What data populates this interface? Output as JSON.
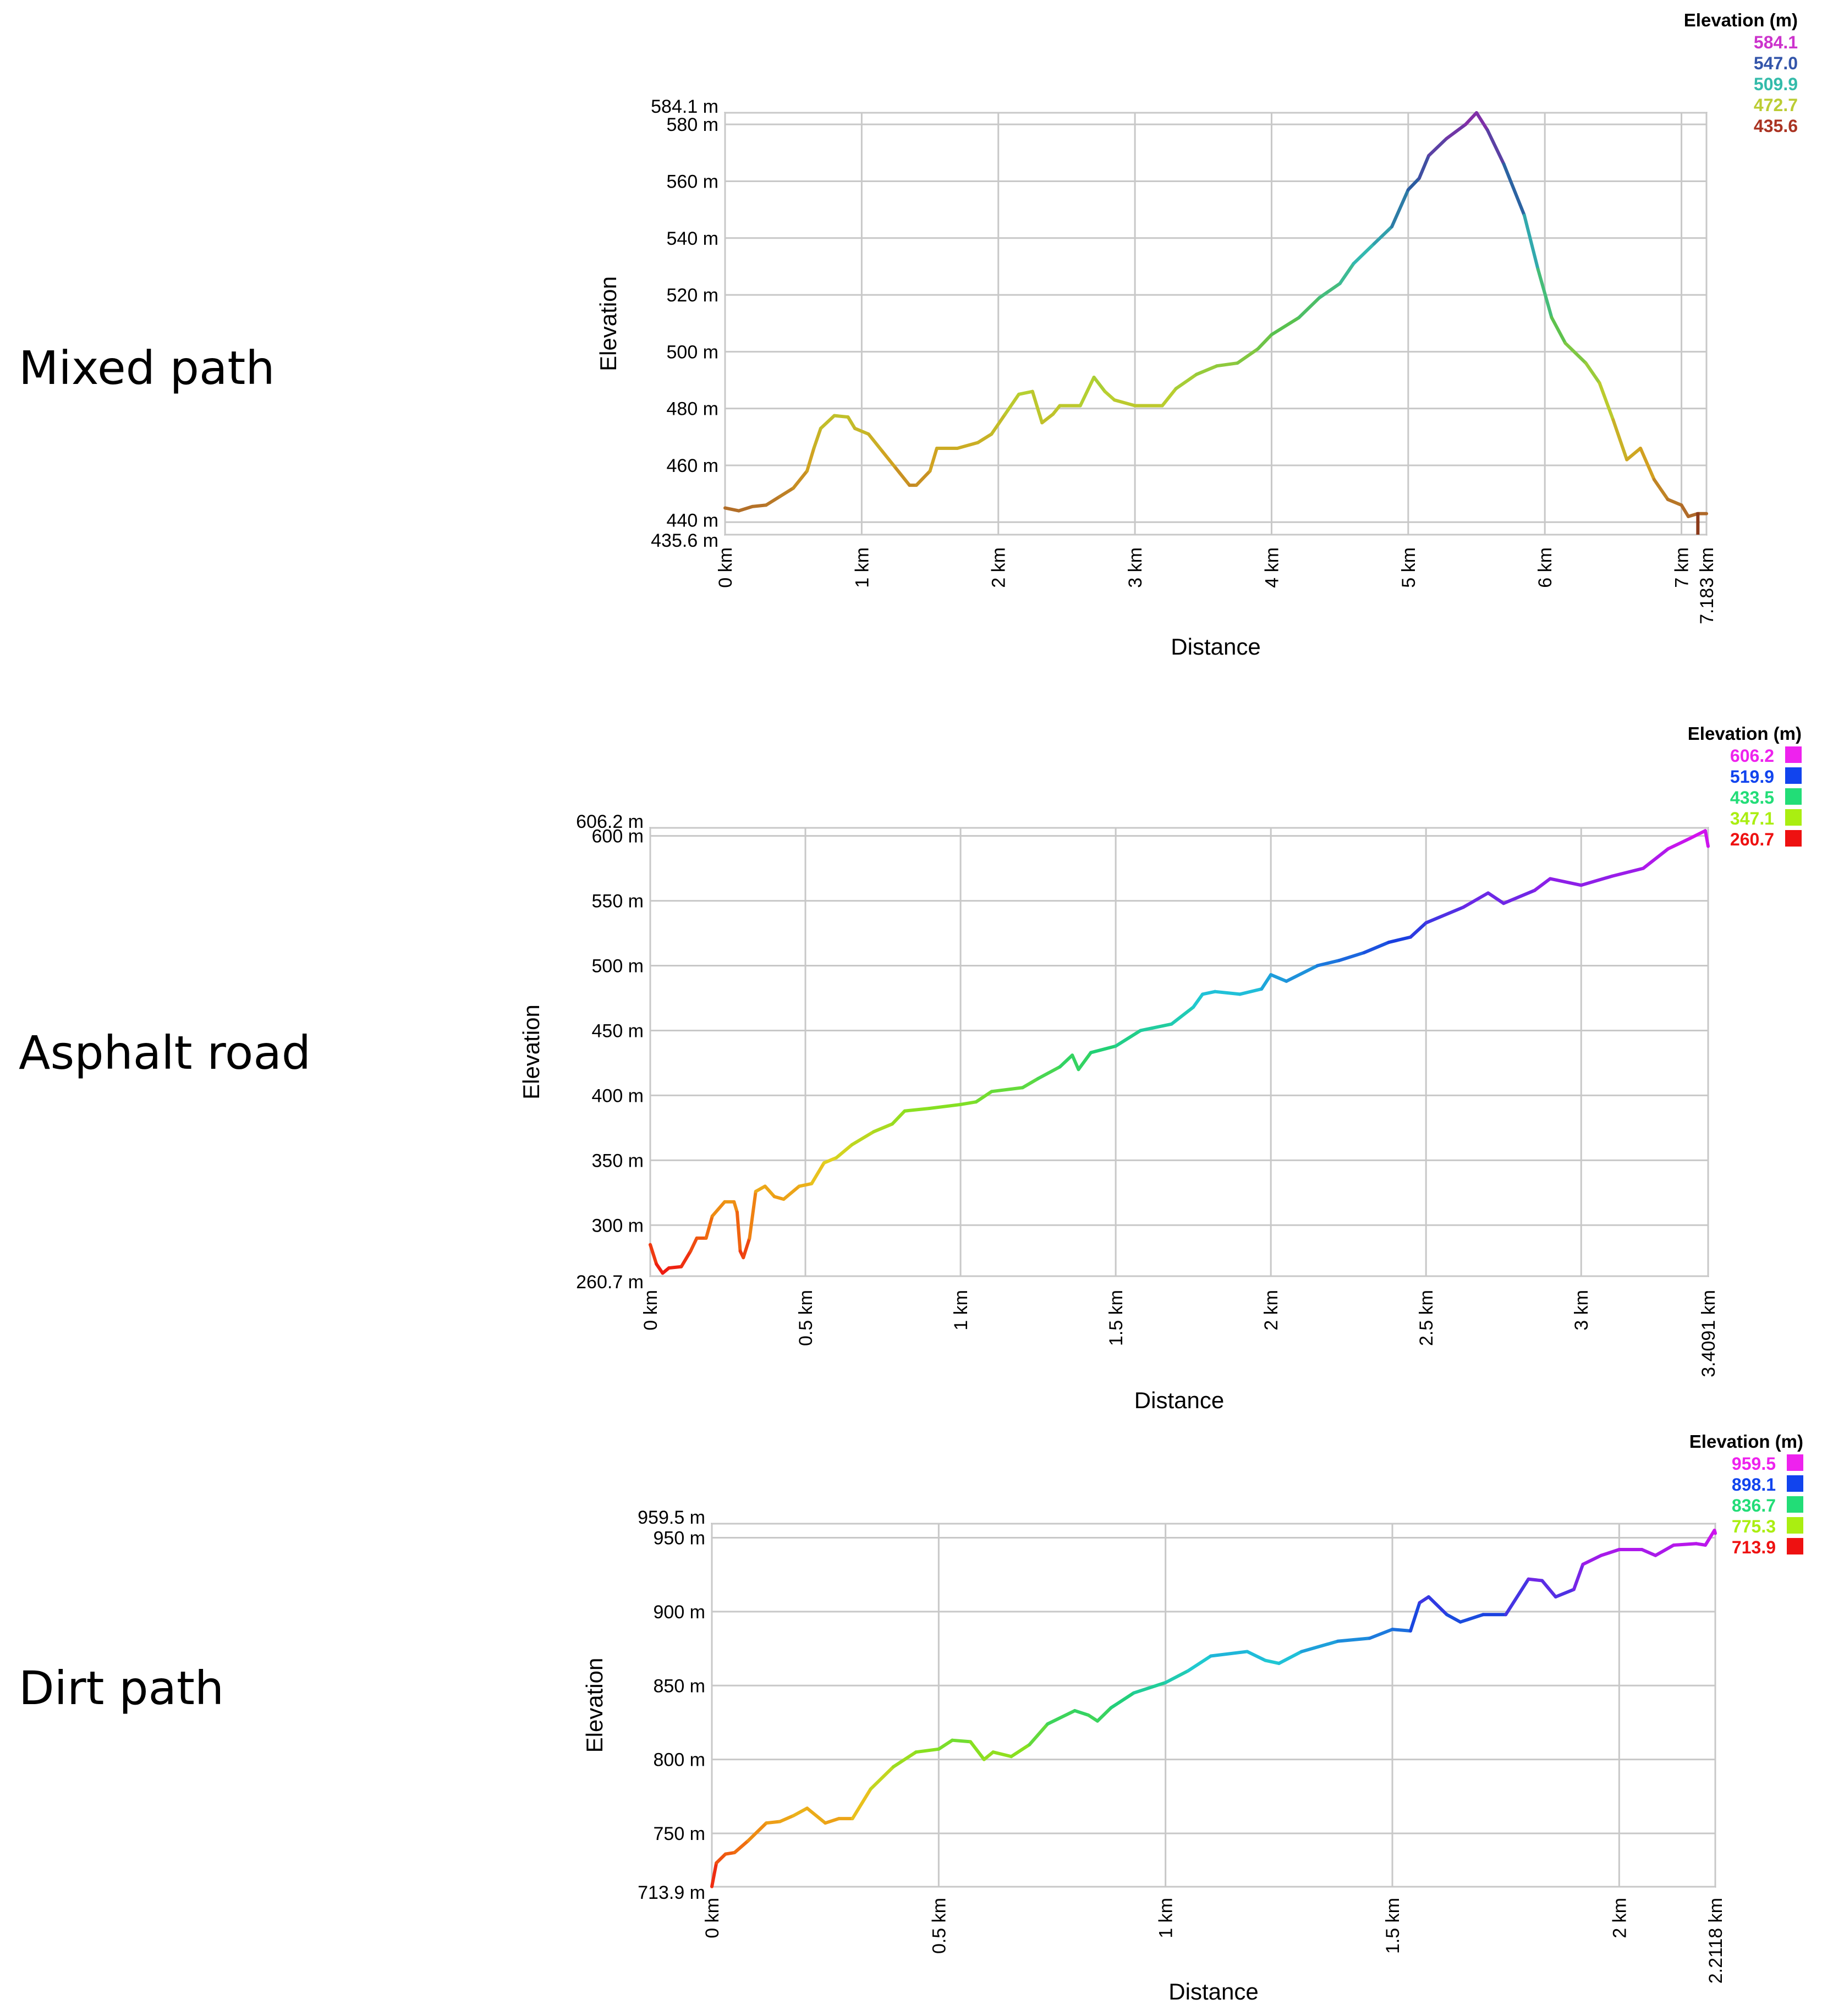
{
  "rows": [
    {
      "label": "Mixed path"
    },
    {
      "label": "Asphalt road"
    },
    {
      "label": "Dirt path"
    }
  ],
  "chart_data": [
    {
      "type": "line",
      "xlabel": "Distance",
      "ylabel": "Elevation",
      "xlim": [
        0,
        7.183
      ],
      "ylim": [
        435.6,
        584.1
      ],
      "x_ticks": [
        {
          "v": 0,
          "label": "0 km"
        },
        {
          "v": 1,
          "label": "1 km"
        },
        {
          "v": 2,
          "label": "2 km"
        },
        {
          "v": 3,
          "label": "3 km"
        },
        {
          "v": 4,
          "label": "4 km"
        },
        {
          "v": 5,
          "label": "5 km"
        },
        {
          "v": 6,
          "label": "6 km"
        },
        {
          "v": 7,
          "label": "7 km"
        },
        {
          "v": 7.183,
          "label": "7.183 km"
        }
      ],
      "y_ticks": [
        {
          "v": 435.6,
          "label": "435.6 m"
        },
        {
          "v": 440,
          "label": "440 m"
        },
        {
          "v": 460,
          "label": "460 m"
        },
        {
          "v": 480,
          "label": "480 m"
        },
        {
          "v": 500,
          "label": "500 m"
        },
        {
          "v": 520,
          "label": "520 m"
        },
        {
          "v": 540,
          "label": "540 m"
        },
        {
          "v": 560,
          "label": "560 m"
        },
        {
          "v": 580,
          "label": "580 m"
        },
        {
          "v": 584.1,
          "label": "584.1 m"
        }
      ],
      "legend": {
        "title": "Elevation (m)",
        "swatches": false,
        "items": [
          {
            "label": "584.1",
            "color": "#cc33cc"
          },
          {
            "label": "547.0",
            "color": "#3355aa"
          },
          {
            "label": "509.9",
            "color": "#33bbaa"
          },
          {
            "label": "472.7",
            "color": "#bbcc33"
          },
          {
            "label": "435.6",
            "color": "#aa3322"
          }
        ]
      },
      "gradient": [
        "#a0522d",
        "#d2a020",
        "#b8d030",
        "#55c050",
        "#33b8b0",
        "#2a5aa0",
        "#8a2aa8"
      ],
      "points": [
        [
          0,
          445
        ],
        [
          0.1,
          444
        ],
        [
          0.2,
          445.5
        ],
        [
          0.3,
          446
        ],
        [
          0.4,
          449
        ],
        [
          0.5,
          452
        ],
        [
          0.6,
          458
        ],
        [
          0.65,
          466
        ],
        [
          0.7,
          473
        ],
        [
          0.8,
          477.5
        ],
        [
          0.9,
          477
        ],
        [
          0.95,
          473
        ],
        [
          1.05,
          471
        ],
        [
          1.15,
          465
        ],
        [
          1.25,
          459
        ],
        [
          1.35,
          453
        ],
        [
          1.4,
          453
        ],
        [
          1.5,
          458
        ],
        [
          1.55,
          466
        ],
        [
          1.7,
          466
        ],
        [
          1.85,
          468
        ],
        [
          1.95,
          471
        ],
        [
          2.05,
          478
        ],
        [
          2.15,
          485
        ],
        [
          2.25,
          486
        ],
        [
          2.32,
          475
        ],
        [
          2.4,
          478
        ],
        [
          2.45,
          481
        ],
        [
          2.6,
          481
        ],
        [
          2.7,
          491
        ],
        [
          2.78,
          486
        ],
        [
          2.85,
          483
        ],
        [
          3.0,
          481
        ],
        [
          3.2,
          481
        ],
        [
          3.3,
          487
        ],
        [
          3.45,
          492
        ],
        [
          3.6,
          495
        ],
        [
          3.75,
          496
        ],
        [
          3.9,
          501
        ],
        [
          4.0,
          506
        ],
        [
          4.2,
          512
        ],
        [
          4.35,
          519
        ],
        [
          4.5,
          524
        ],
        [
          4.6,
          531
        ],
        [
          4.75,
          538
        ],
        [
          4.88,
          544
        ],
        [
          5.0,
          557
        ],
        [
          5.08,
          561
        ],
        [
          5.15,
          569
        ],
        [
          5.28,
          575
        ],
        [
          5.42,
          580
        ],
        [
          5.5,
          584.1
        ],
        [
          5.58,
          578
        ],
        [
          5.7,
          566
        ],
        [
          5.85,
          548
        ],
        [
          5.95,
          529
        ],
        [
          6.05,
          512
        ],
        [
          6.15,
          503
        ],
        [
          6.3,
          496
        ],
        [
          6.4,
          489
        ],
        [
          6.5,
          476
        ],
        [
          6.6,
          462
        ],
        [
          6.7,
          466
        ],
        [
          6.8,
          455
        ],
        [
          6.9,
          448
        ],
        [
          7.0,
          446
        ],
        [
          7.05,
          442
        ],
        [
          7.12,
          443
        ],
        [
          7.183,
          443
        ]
      ],
      "end_marker": {
        "x": 7.12,
        "y0": 443.5,
        "y1": 435.6
      }
    },
    {
      "type": "line",
      "xlabel": "Distance",
      "ylabel": "Elevation",
      "xlim": [
        0,
        3.4091
      ],
      "ylim": [
        260.7,
        606.2
      ],
      "x_ticks": [
        {
          "v": 0,
          "label": "0 km"
        },
        {
          "v": 0.5,
          "label": "0.5 km"
        },
        {
          "v": 1,
          "label": "1 km"
        },
        {
          "v": 1.5,
          "label": "1.5 km"
        },
        {
          "v": 2,
          "label": "2 km"
        },
        {
          "v": 2.5,
          "label": "2.5 km"
        },
        {
          "v": 3,
          "label": "3 km"
        },
        {
          "v": 3.4091,
          "label": "3.4091 km"
        }
      ],
      "y_ticks": [
        {
          "v": 260.7,
          "label": "260.7 m"
        },
        {
          "v": 300,
          "label": "300 m"
        },
        {
          "v": 350,
          "label": "350 m"
        },
        {
          "v": 400,
          "label": "400 m"
        },
        {
          "v": 450,
          "label": "450 m"
        },
        {
          "v": 500,
          "label": "500 m"
        },
        {
          "v": 550,
          "label": "550 m"
        },
        {
          "v": 600,
          "label": "600 m"
        },
        {
          "v": 606.2,
          "label": "606.2 m"
        }
      ],
      "legend": {
        "title": "Elevation (m)",
        "swatches": true,
        "items": [
          {
            "label": "606.2",
            "color": "#ee22ee"
          },
          {
            "label": "519.9",
            "color": "#1144ee"
          },
          {
            "label": "433.5",
            "color": "#22dd77"
          },
          {
            "label": "347.1",
            "color": "#aaee11"
          },
          {
            "label": "260.7",
            "color": "#ee1111"
          }
        ]
      },
      "gradient": [
        "#ee1111",
        "#f07a10",
        "#e8d020",
        "#88e020",
        "#22d070",
        "#20c8d8",
        "#1a40e0",
        "#8a20e8",
        "#dd10ee"
      ],
      "points": [
        [
          0,
          285
        ],
        [
          0.02,
          270
        ],
        [
          0.04,
          263
        ],
        [
          0.06,
          267
        ],
        [
          0.1,
          268
        ],
        [
          0.13,
          280
        ],
        [
          0.15,
          290
        ],
        [
          0.18,
          290
        ],
        [
          0.2,
          307
        ],
        [
          0.24,
          318
        ],
        [
          0.27,
          318
        ],
        [
          0.28,
          310
        ],
        [
          0.29,
          280
        ],
        [
          0.3,
          275
        ],
        [
          0.32,
          290
        ],
        [
          0.34,
          326
        ],
        [
          0.37,
          330
        ],
        [
          0.4,
          322
        ],
        [
          0.43,
          320
        ],
        [
          0.48,
          330
        ],
        [
          0.52,
          332
        ],
        [
          0.56,
          348
        ],
        [
          0.6,
          352
        ],
        [
          0.65,
          362
        ],
        [
          0.72,
          372
        ],
        [
          0.78,
          378
        ],
        [
          0.82,
          388
        ],
        [
          0.9,
          390
        ],
        [
          1.0,
          393
        ],
        [
          1.05,
          395
        ],
        [
          1.1,
          403
        ],
        [
          1.2,
          406
        ],
        [
          1.25,
          413
        ],
        [
          1.32,
          422
        ],
        [
          1.36,
          431
        ],
        [
          1.38,
          420
        ],
        [
          1.42,
          433
        ],
        [
          1.5,
          438
        ],
        [
          1.58,
          450
        ],
        [
          1.68,
          455
        ],
        [
          1.75,
          468
        ],
        [
          1.78,
          478
        ],
        [
          1.82,
          480
        ],
        [
          1.9,
          478
        ],
        [
          1.97,
          482
        ],
        [
          2.0,
          493
        ],
        [
          2.05,
          488
        ],
        [
          2.15,
          500
        ],
        [
          2.22,
          504
        ],
        [
          2.3,
          510
        ],
        [
          2.38,
          518
        ],
        [
          2.45,
          522
        ],
        [
          2.5,
          533
        ],
        [
          2.55,
          538
        ],
        [
          2.62,
          545
        ],
        [
          2.7,
          556
        ],
        [
          2.75,
          548
        ],
        [
          2.85,
          558
        ],
        [
          2.9,
          567
        ],
        [
          3.0,
          562
        ],
        [
          3.1,
          569
        ],
        [
          3.2,
          575
        ],
        [
          3.28,
          590
        ],
        [
          3.35,
          598
        ],
        [
          3.4,
          604
        ],
        [
          3.4091,
          592
        ]
      ]
    },
    {
      "type": "line",
      "xlabel": "Distance",
      "ylabel": "Elevation",
      "xlim": [
        0,
        2.2118
      ],
      "ylim": [
        713.9,
        959.5
      ],
      "x_ticks": [
        {
          "v": 0,
          "label": "0 km"
        },
        {
          "v": 0.5,
          "label": "0.5 km"
        },
        {
          "v": 1,
          "label": "1 km"
        },
        {
          "v": 1.5,
          "label": "1.5 km"
        },
        {
          "v": 2,
          "label": "2 km"
        },
        {
          "v": 2.2118,
          "label": "2.2118 km"
        }
      ],
      "y_ticks": [
        {
          "v": 713.9,
          "label": "713.9 m"
        },
        {
          "v": 750,
          "label": "750 m"
        },
        {
          "v": 800,
          "label": "800 m"
        },
        {
          "v": 850,
          "label": "850 m"
        },
        {
          "v": 900,
          "label": "900 m"
        },
        {
          "v": 950,
          "label": "950 m"
        },
        {
          "v": 959.5,
          "label": "959.5 m"
        }
      ],
      "legend": {
        "title": "Elevation (m)",
        "swatches": true,
        "items": [
          {
            "label": "959.5",
            "color": "#ee22ee"
          },
          {
            "label": "898.1",
            "color": "#1144ee"
          },
          {
            "label": "836.7",
            "color": "#22dd77"
          },
          {
            "label": "775.3",
            "color": "#aaee11"
          },
          {
            "label": "713.9",
            "color": "#ee1111"
          }
        ]
      },
      "gradient": [
        "#ee1111",
        "#f07a10",
        "#e8d020",
        "#88e020",
        "#22d070",
        "#20c8d8",
        "#1a40e0",
        "#8a20e8",
        "#dd10ee"
      ],
      "points": [
        [
          0,
          714
        ],
        [
          0.01,
          730
        ],
        [
          0.03,
          736
        ],
        [
          0.05,
          737
        ],
        [
          0.08,
          745
        ],
        [
          0.12,
          757
        ],
        [
          0.15,
          758
        ],
        [
          0.18,
          762
        ],
        [
          0.21,
          767
        ],
        [
          0.25,
          757
        ],
        [
          0.28,
          760
        ],
        [
          0.31,
          760
        ],
        [
          0.35,
          780
        ],
        [
          0.4,
          795
        ],
        [
          0.45,
          805
        ],
        [
          0.5,
          807
        ],
        [
          0.53,
          813
        ],
        [
          0.57,
          812
        ],
        [
          0.6,
          800
        ],
        [
          0.62,
          805
        ],
        [
          0.66,
          802
        ],
        [
          0.7,
          810
        ],
        [
          0.74,
          824
        ],
        [
          0.8,
          833
        ],
        [
          0.83,
          830
        ],
        [
          0.85,
          826
        ],
        [
          0.88,
          835
        ],
        [
          0.93,
          845
        ],
        [
          1.0,
          852
        ],
        [
          1.05,
          860
        ],
        [
          1.1,
          870
        ],
        [
          1.18,
          873
        ],
        [
          1.22,
          867
        ],
        [
          1.25,
          865
        ],
        [
          1.3,
          873
        ],
        [
          1.38,
          880
        ],
        [
          1.45,
          882
        ],
        [
          1.5,
          888
        ],
        [
          1.54,
          887
        ],
        [
          1.56,
          906
        ],
        [
          1.58,
          910
        ],
        [
          1.62,
          898
        ],
        [
          1.65,
          893
        ],
        [
          1.7,
          898
        ],
        [
          1.75,
          898
        ],
        [
          1.8,
          922
        ],
        [
          1.83,
          921
        ],
        [
          1.86,
          910
        ],
        [
          1.9,
          915
        ],
        [
          1.92,
          932
        ],
        [
          1.96,
          938
        ],
        [
          2.0,
          942
        ],
        [
          2.05,
          942
        ],
        [
          2.08,
          938
        ],
        [
          2.12,
          945
        ],
        [
          2.17,
          946
        ],
        [
          2.19,
          945
        ],
        [
          2.2,
          950
        ],
        [
          2.21,
          955
        ],
        [
          2.2118,
          953
        ]
      ]
    }
  ]
}
